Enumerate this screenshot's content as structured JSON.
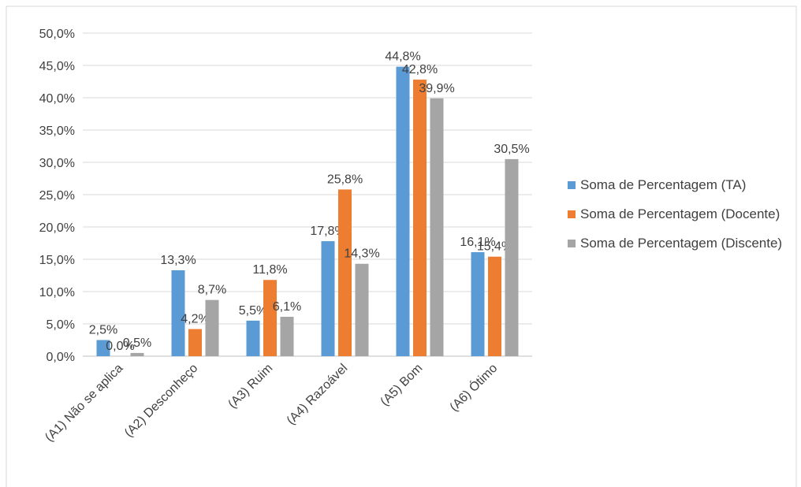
{
  "chart_data": {
    "type": "bar",
    "categories": [
      "(A1) Não se aplica",
      "(A2) Desconheço",
      "(A3) Ruim",
      "(A4) Razoável",
      "(A5) Bom",
      "(A6) Ótimo"
    ],
    "series": [
      {
        "name": "Soma de Percentagem (TA)",
        "color": "#5b9bd5",
        "values": [
          2.5,
          13.3,
          5.5,
          17.8,
          44.8,
          16.1
        ],
        "value_labels": [
          "2,5%",
          "13,3%",
          "5,5%",
          "17,8%",
          "44,8%",
          "16,1%"
        ]
      },
      {
        "name": "Soma de Percentagem (Docente)",
        "color": "#ed7d31",
        "values": [
          0.0,
          4.2,
          11.8,
          25.8,
          42.8,
          15.4
        ],
        "value_labels": [
          "0,0%",
          "4,2%",
          "11,8%",
          "25,8%",
          "42,8%",
          "15,4%"
        ]
      },
      {
        "name": "Soma de Percentagem (Discente)",
        "color": "#a5a5a5",
        "values": [
          0.5,
          8.7,
          6.1,
          14.3,
          39.9,
          30.5
        ],
        "value_labels": [
          "0,5%",
          "8,7%",
          "6,1%",
          "14,3%",
          "39,9%",
          "30,5%"
        ]
      }
    ],
    "ylim": [
      0,
      50
    ],
    "yticks": [
      {
        "value": 0,
        "label": "0,0%"
      },
      {
        "value": 5,
        "label": "5,0%"
      },
      {
        "value": 10,
        "label": "10,0%"
      },
      {
        "value": 15,
        "label": "15,0%"
      },
      {
        "value": 20,
        "label": "20,0%"
      },
      {
        "value": 25,
        "label": "25,0%"
      },
      {
        "value": 30,
        "label": "30,0%"
      },
      {
        "value": 35,
        "label": "35,0%"
      },
      {
        "value": 40,
        "label": "40,0%"
      },
      {
        "value": 45,
        "label": "45,0%"
      },
      {
        "value": 50,
        "label": "50,0%"
      }
    ],
    "grid": true,
    "legend": "right"
  }
}
